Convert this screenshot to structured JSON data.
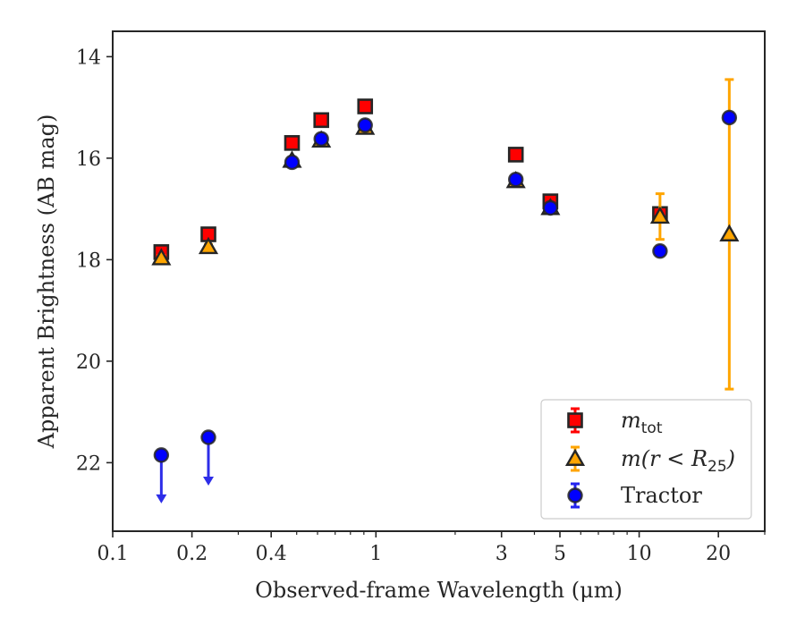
{
  "chart_data": {
    "type": "scatter",
    "xlabel": "Observed-frame Wavelength (μm)",
    "ylabel": "Apparent Brightness (AB mag)",
    "x_scale": "log",
    "y_inverted": true,
    "xlim": [
      0.1,
      30
    ],
    "ylim": [
      23.35,
      13.5
    ],
    "x_ticks": [
      {
        "value": 0.1,
        "label": "0.1"
      },
      {
        "value": 0.2,
        "label": "0.2"
      },
      {
        "value": 0.4,
        "label": "0.4"
      },
      {
        "value": 1,
        "label": "1"
      },
      {
        "value": 3,
        "label": "3"
      },
      {
        "value": 5,
        "label": "5"
      },
      {
        "value": 10,
        "label": "10"
      },
      {
        "value": 20,
        "label": "20"
      }
    ],
    "y_ticks": [
      {
        "value": 14,
        "label": "14"
      },
      {
        "value": 16,
        "label": "16"
      },
      {
        "value": 18,
        "label": "18"
      },
      {
        "value": 20,
        "label": "20"
      },
      {
        "value": 22,
        "label": "22"
      }
    ],
    "grid": false,
    "legend_position": "lower-right",
    "legend": [
      {
        "series": "mtot",
        "label_main": "m",
        "label_sub": "tot"
      },
      {
        "series": "mr25",
        "label_main": "m(r < R",
        "label_sub": "25",
        "label_end": ")"
      },
      {
        "series": "tractor",
        "label_main": "Tractor"
      }
    ],
    "series": [
      {
        "key": "mtot",
        "marker": "square",
        "color": "#ff0000",
        "edge": "#262626",
        "errcolor": "#ff0000",
        "points": [
          {
            "x": 0.153,
            "y": 17.85,
            "err": 0.08
          },
          {
            "x": 0.231,
            "y": 17.5,
            "err": 0.05
          },
          {
            "x": 0.48,
            "y": 15.7,
            "err": 0.05
          },
          {
            "x": 0.62,
            "y": 15.25,
            "err": 0.05
          },
          {
            "x": 0.91,
            "y": 14.98,
            "err": 0.05
          },
          {
            "x": 3.4,
            "y": 15.93,
            "err": 0.05
          },
          {
            "x": 4.6,
            "y": 16.85,
            "err": 0.05
          },
          {
            "x": 12,
            "y": 17.1,
            "err": 0.1
          }
        ]
      },
      {
        "key": "mr25",
        "marker": "triangle",
        "color": "#ffa500",
        "edge": "#262626",
        "errcolor": "#ffa500",
        "points": [
          {
            "x": 0.153,
            "y": 17.97,
            "err": 0.05
          },
          {
            "x": 0.231,
            "y": 17.75,
            "err": 0.05
          },
          {
            "x": 0.48,
            "y": 16.05,
            "err": 0.05
          },
          {
            "x": 0.62,
            "y": 15.65,
            "err": 0.05
          },
          {
            "x": 0.91,
            "y": 15.4,
            "err": 0.05
          },
          {
            "x": 3.4,
            "y": 16.45,
            "err": 0.05
          },
          {
            "x": 4.6,
            "y": 16.98,
            "err": 0.05
          },
          {
            "x": 12,
            "y": 17.15,
            "err": 0.45
          },
          {
            "x": 22,
            "y": 17.5,
            "err": 3.05
          }
        ]
      },
      {
        "key": "tractor",
        "marker": "circle",
        "color": "#0000ff",
        "edge": "#262626",
        "errcolor": "#2222ee",
        "points": [
          {
            "x": 0.153,
            "y": 21.85,
            "err": 0.05,
            "upper_limit": true
          },
          {
            "x": 0.231,
            "y": 21.5,
            "err": 0.05,
            "upper_limit": true
          },
          {
            "x": 0.48,
            "y": 16.08,
            "err": 0.05
          },
          {
            "x": 0.62,
            "y": 15.62,
            "err": 0.05
          },
          {
            "x": 0.91,
            "y": 15.35,
            "err": 0.05
          },
          {
            "x": 3.4,
            "y": 16.42,
            "err": 0.05
          },
          {
            "x": 4.6,
            "y": 16.98,
            "err": 0.05
          },
          {
            "x": 12,
            "y": 17.83,
            "err": 0.05
          },
          {
            "x": 22,
            "y": 15.2,
            "err": 0.05
          }
        ]
      }
    ]
  }
}
